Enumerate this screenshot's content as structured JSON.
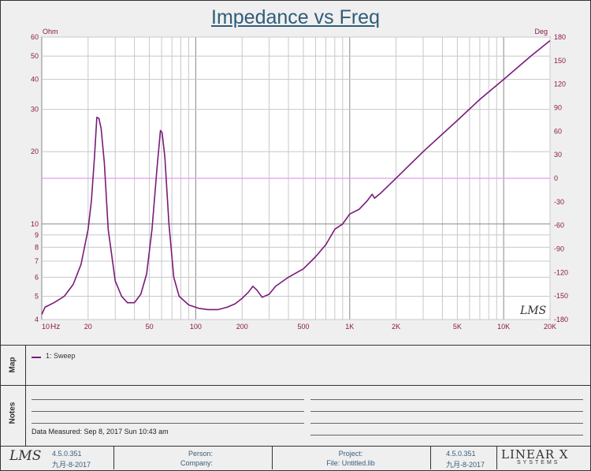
{
  "chart_data": {
    "type": "line",
    "title": "Impedance vs Freq",
    "xlabel": "Hz",
    "ylabel": "Ohm",
    "y2label": "Deg",
    "x_scale": "log",
    "y_scale": "log",
    "xlim": [
      10,
      20000
    ],
    "ylim": [
      4,
      60
    ],
    "y2lim": [
      -180,
      180
    ],
    "x_ticks": [
      "10",
      "20",
      "50",
      "100",
      "200",
      "500",
      "1K",
      "2K",
      "5K",
      "10K",
      "20K"
    ],
    "y_ticks": [
      "4",
      "5",
      "6",
      "7",
      "8",
      "9",
      "10",
      "20",
      "30",
      "40",
      "50",
      "60"
    ],
    "y2_ticks": [
      "180",
      "150",
      "120",
      "90",
      "60",
      "30",
      "0",
      "-30",
      "-60",
      "-90",
      "-120",
      "-150",
      "-180"
    ],
    "grid": true,
    "legend": "bottom-panel",
    "series": [
      {
        "name": "1: Sweep",
        "color": "#7a1a7a",
        "points": [
          [
            10,
            4.2
          ],
          [
            10.5,
            4.5
          ],
          [
            12,
            4.7
          ],
          [
            14,
            5.0
          ],
          [
            16,
            5.6
          ],
          [
            18,
            6.8
          ],
          [
            20,
            9.5
          ],
          [
            21,
            12.5
          ],
          [
            22,
            19
          ],
          [
            22.8,
            27.8
          ],
          [
            23.5,
            27.5
          ],
          [
            24.3,
            25
          ],
          [
            25.5,
            18
          ],
          [
            27,
            9.5
          ],
          [
            30,
            5.8
          ],
          [
            33,
            5.0
          ],
          [
            36,
            4.7
          ],
          [
            40,
            4.7
          ],
          [
            44,
            5.1
          ],
          [
            48,
            6.2
          ],
          [
            52,
            9.5
          ],
          [
            56,
            17
          ],
          [
            59,
            24.5
          ],
          [
            60.5,
            24
          ],
          [
            63,
            19
          ],
          [
            67,
            10
          ],
          [
            72,
            6.0
          ],
          [
            78,
            5.0
          ],
          [
            90,
            4.6
          ],
          [
            105,
            4.45
          ],
          [
            120,
            4.4
          ],
          [
            140,
            4.4
          ],
          [
            160,
            4.5
          ],
          [
            180,
            4.65
          ],
          [
            200,
            4.9
          ],
          [
            220,
            5.2
          ],
          [
            235,
            5.5
          ],
          [
            250,
            5.3
          ],
          [
            270,
            4.95
          ],
          [
            300,
            5.1
          ],
          [
            330,
            5.5
          ],
          [
            400,
            6.0
          ],
          [
            500,
            6.5
          ],
          [
            600,
            7.3
          ],
          [
            700,
            8.2
          ],
          [
            800,
            9.5
          ],
          [
            900,
            10.0
          ],
          [
            1000,
            11.0
          ],
          [
            1150,
            11.5
          ],
          [
            1300,
            12.5
          ],
          [
            1400,
            13.3
          ],
          [
            1450,
            12.8
          ],
          [
            1600,
            13.5
          ],
          [
            2000,
            15.5
          ],
          [
            3000,
            20
          ],
          [
            5000,
            27
          ],
          [
            7000,
            33
          ],
          [
            10000,
            40
          ],
          [
            15000,
            50
          ],
          [
            20000,
            58
          ]
        ]
      }
    ]
  },
  "legend": {
    "series_label": "1: Sweep"
  },
  "panels": {
    "map_label": "Map",
    "notes_label": "Notes"
  },
  "notes": {
    "measured": "Data Measured: Sep 8, 2017 Sun 10:43 am"
  },
  "footer": {
    "logo": "LMS",
    "version_left": "4.5.0.351",
    "date_left": "九月-8-2017",
    "person_label": "Person:",
    "company_label": "Company:",
    "project_label": "Project:",
    "file_label": "File: Untitled.lib",
    "version_right": "4.5.0.351",
    "date_right": "九月-8-2017",
    "brand": "LINEAR X",
    "brand_sub": "SYSTEMS"
  },
  "watermark": "LMS",
  "colors": {
    "curve": "#7a1a7a",
    "zero_line": "#e0a0e8",
    "title": "#2f5d7a",
    "tick": "#8a1a4a"
  }
}
